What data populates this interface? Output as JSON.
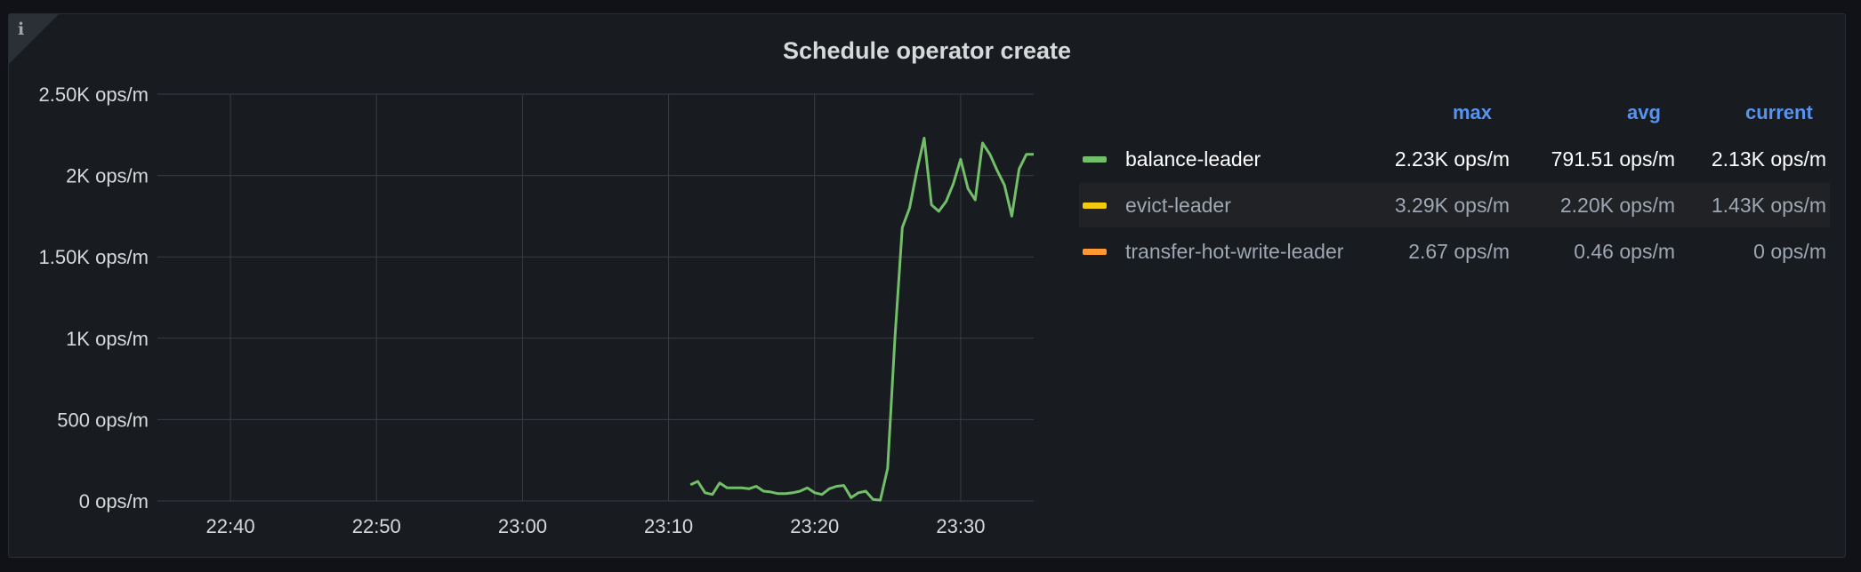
{
  "panel": {
    "title": "Schedule operator create",
    "info_icon": "i"
  },
  "chart_data": {
    "type": "line",
    "title": "Schedule operator create",
    "xlabel": "",
    "ylabel": "",
    "x_ticks": [
      "22:40",
      "22:50",
      "23:00",
      "23:10",
      "23:20",
      "23:30"
    ],
    "y_ticks": [
      "0 ops/m",
      "500 ops/m",
      "1K ops/m",
      "1.50K ops/m",
      "2K ops/m",
      "2.50K ops/m"
    ],
    "xlim_minutes": [
      "22:35",
      "23:35"
    ],
    "ylim": [
      0,
      2500
    ],
    "grid": true,
    "legend_position": "right",
    "series": [
      {
        "name": "balance-leader",
        "color": "#73bf69",
        "x": [
          "23:11:30",
          "23:12",
          "23:12:30",
          "23:13",
          "23:13:30",
          "23:14",
          "23:15",
          "23:15:30",
          "23:16",
          "23:16:30",
          "23:17",
          "23:17:30",
          "23:18",
          "23:18:30",
          "23:19",
          "23:19:30",
          "23:20",
          "23:20:30",
          "23:21",
          "23:21:30",
          "23:22",
          "23:22:30",
          "23:23",
          "23:23:30",
          "23:24",
          "23:24:30",
          "23:25",
          "23:25:30",
          "23:26",
          "23:26:30",
          "23:27",
          "23:27:30",
          "23:28",
          "23:28:30",
          "23:29",
          "23:29:30",
          "23:30",
          "23:30:30",
          "23:31",
          "23:31:30",
          "23:32",
          "23:32:30",
          "23:33",
          "23:33:30",
          "23:34",
          "23:34:30",
          "23:35"
        ],
        "values": [
          100,
          120,
          50,
          40,
          110,
          80,
          80,
          75,
          90,
          60,
          55,
          45,
          45,
          50,
          60,
          80,
          50,
          40,
          75,
          90,
          95,
          20,
          50,
          60,
          10,
          5,
          200,
          1000,
          1680,
          1800,
          2030,
          2230,
          1820,
          1780,
          1840,
          1950,
          2100,
          1920,
          1850,
          2200,
          2130,
          2030,
          1940,
          1750,
          2040,
          2130,
          2130
        ]
      },
      {
        "name": "evict-leader",
        "color": "#f2cc0c",
        "x": [],
        "values": []
      },
      {
        "name": "transfer-hot-write-leader",
        "color": "#ff9830",
        "x": [],
        "values": []
      }
    ]
  },
  "legend": {
    "headers": {
      "max": "max",
      "avg": "avg",
      "current": "current"
    },
    "rows": [
      {
        "name": "balance-leader",
        "color": "#73bf69",
        "max": "2.23K ops/m",
        "avg": "791.51 ops/m",
        "current": "2.13K ops/m"
      },
      {
        "name": "evict-leader",
        "color": "#f2cc0c",
        "max": "3.29K ops/m",
        "avg": "2.20K ops/m",
        "current": "1.43K ops/m"
      },
      {
        "name": "transfer-hot-write-leader",
        "color": "#ff9830",
        "max": "2.67 ops/m",
        "avg": "0.46 ops/m",
        "current": "0 ops/m"
      }
    ]
  }
}
